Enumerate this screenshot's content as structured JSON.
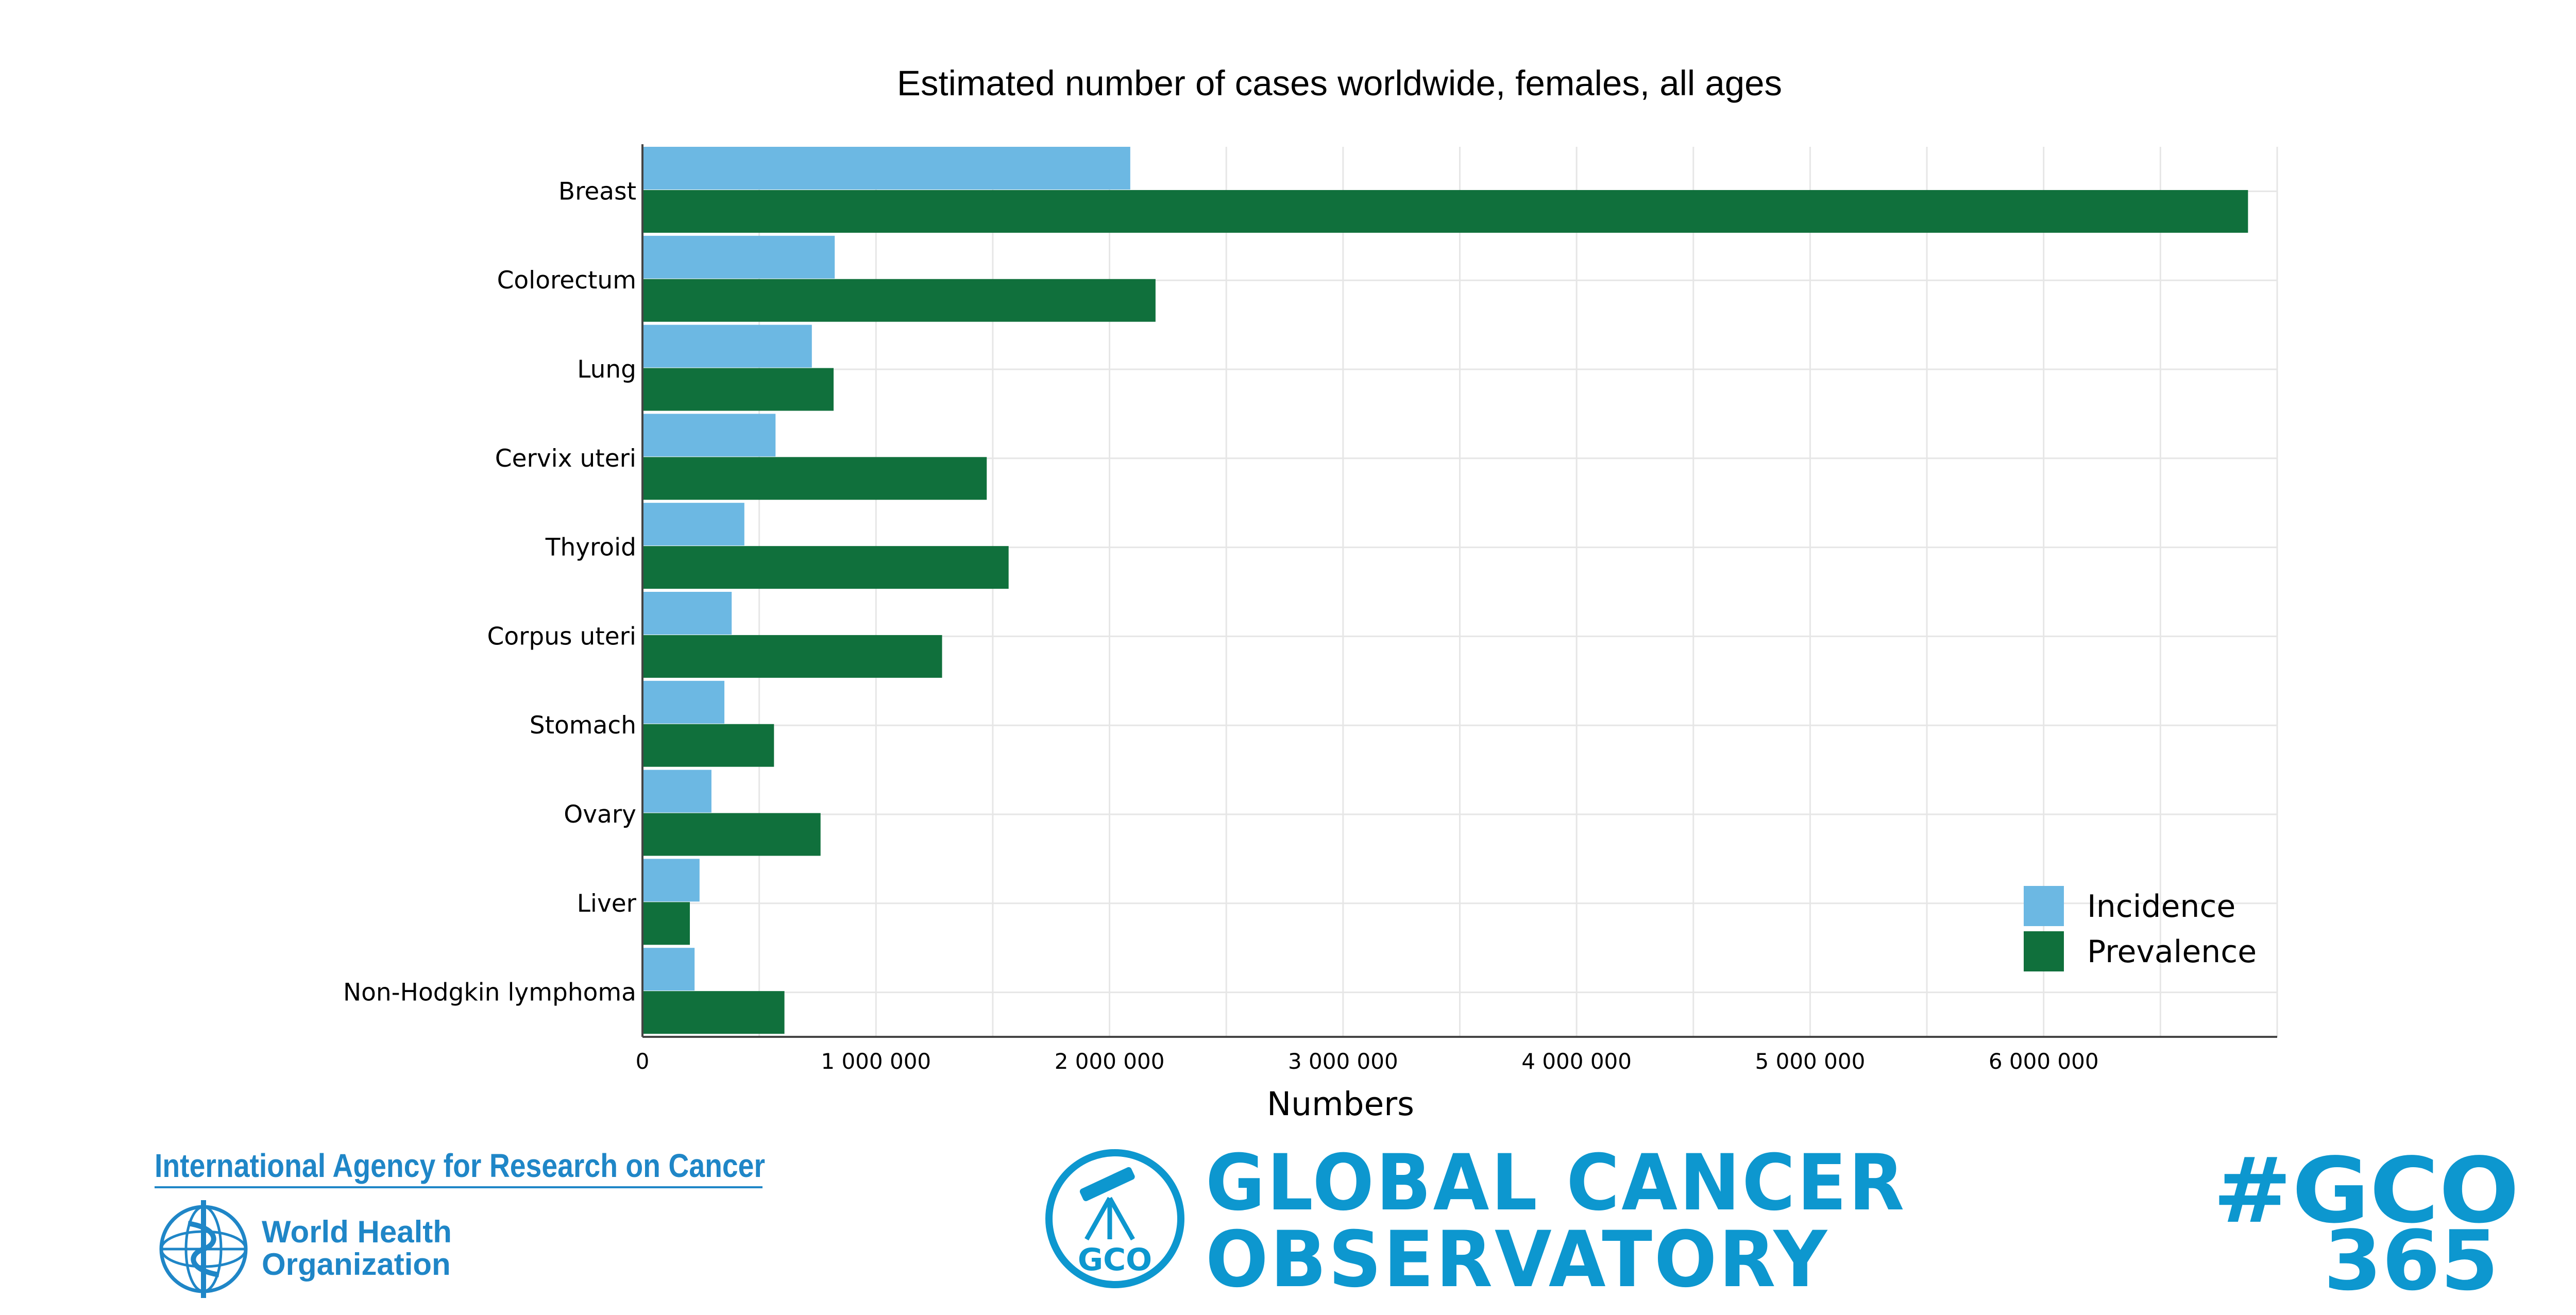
{
  "chart_data": {
    "type": "bar",
    "orientation": "horizontal",
    "title": "Estimated number of cases worldwide, females, all ages",
    "xlabel": "Numbers",
    "ylabel": "",
    "categories": [
      "Breast",
      "Colorectum",
      "Lung",
      "Cervix uteri",
      "Thyroid",
      "Corpus uteri",
      "Stomach",
      "Ovary",
      "Liver",
      "Non-Hodgkin lymphoma"
    ],
    "series": [
      {
        "name": "Incidence",
        "color": "#6cb8e3",
        "values": [
          2088849,
          823303,
          725352,
          569847,
          436344,
          382069,
          350872,
          295414,
          244506,
          223179
        ]
      },
      {
        "name": "Prevalence",
        "color": "#10703c",
        "values": [
          6875099,
          2197046,
          818500,
          1474265,
          1567890,
          1283000,
          563271,
          762663,
          203000,
          608000
        ]
      }
    ],
    "xlim": [
      0,
      7000000
    ],
    "xticks": [
      0,
      1000000,
      2000000,
      3000000,
      4000000,
      5000000,
      6000000
    ],
    "xtick_labels": [
      "0",
      "1 000 000",
      "2 000 000",
      "3 000 000",
      "4 000 000",
      "5 000 000",
      "6 000 000"
    ],
    "grid": true,
    "legend_position": "bottom-right"
  },
  "footer": {
    "iarc": "International Agency for Research on Cancer",
    "who_line1": "World Health",
    "who_line2": "Organization",
    "gco_line1": "GLOBAL CANCER",
    "gco_line2": "OBSERVATORY",
    "gco_badge": "GCO",
    "hashtag_line1": "#GCO",
    "hashtag_line2": "365"
  }
}
